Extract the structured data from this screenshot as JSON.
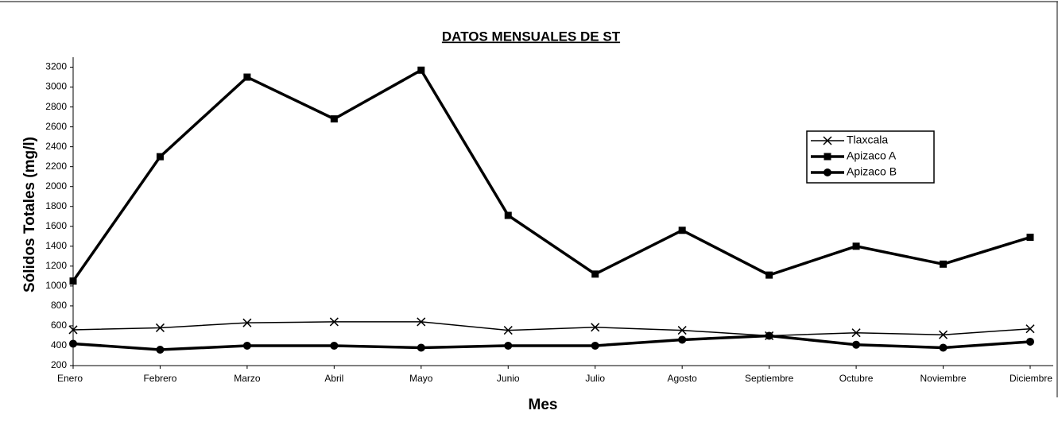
{
  "chart_data": {
    "type": "line",
    "title": "DATOS  MENSUALES  DE ST",
    "x_label": "Mes",
    "y_label": "Sólidos Totales (mg/l)",
    "categories": [
      "Enero",
      "Febrero",
      "Marzo",
      "Abril",
      "Mayo",
      "Junio",
      "Julio",
      "Agosto",
      "Septiembre",
      "Octubre",
      "Noviembre",
      "Diciembre"
    ],
    "series": [
      {
        "name": "Tlaxcala",
        "color": "#000000",
        "marker": "x",
        "values": [
          560,
          580,
          630,
          640,
          640,
          555,
          585,
          555,
          500,
          530,
          510,
          570
        ]
      },
      {
        "name": "Apizaco A",
        "color": "#000000",
        "marker": "square",
        "values": [
          1050,
          2300,
          3100,
          2680,
          3170,
          1710,
          1120,
          1560,
          1110,
          1400,
          1220,
          1490
        ]
      },
      {
        "name": "Apizaco B",
        "color": "#000000",
        "marker": "circle",
        "values": [
          420,
          360,
          400,
          400,
          380,
          400,
          400,
          460,
          500,
          410,
          380,
          440
        ]
      }
    ],
    "ylim": [
      200,
      3300
    ],
    "yticks": [
      200,
      400,
      600,
      800,
      1000,
      1200,
      1400,
      1600,
      1800,
      2000,
      2200,
      2400,
      2600,
      2800,
      3000,
      3200
    ],
    "grid": false,
    "legend": "right"
  }
}
